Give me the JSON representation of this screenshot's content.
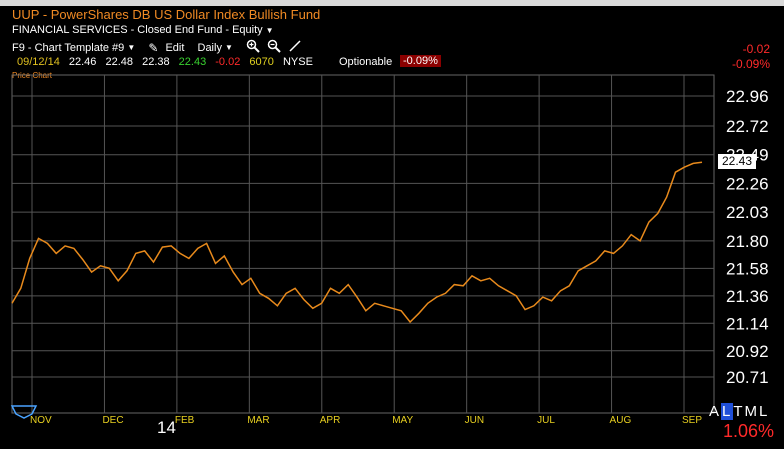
{
  "window": {
    "title": "UUP - PowerShares DB US Dollar Index Bullish Fund",
    "classification": "FINANCIAL SERVICES - Closed End Fund - Equity"
  },
  "toolbar": {
    "template": "F9 - Chart Template #9",
    "edit": "Edit",
    "period": "Daily"
  },
  "quote": {
    "date": "09/12/14",
    "open": "22.46",
    "high": "22.48",
    "low": "22.38",
    "last": "22.43",
    "change": "-0.02",
    "volume": "6070",
    "exchange": "NYSE",
    "optionable": "Optionable",
    "change_pct": "-0.09%"
  },
  "right_panel": {
    "change": "-0.02",
    "change_pct": "-0.09%",
    "range_labels": [
      "A",
      "L",
      "T",
      "M",
      "L"
    ],
    "range_pct": "1.06%"
  },
  "chart_data": {
    "type": "line",
    "panel_label": "Price Chart",
    "series": [
      {
        "color": "#e88a1c",
        "values": [
          21.3,
          21.42,
          21.66,
          21.82,
          21.78,
          21.7,
          21.76,
          21.74,
          21.65,
          21.55,
          21.6,
          21.58,
          21.48,
          21.56,
          21.7,
          21.72,
          21.63,
          21.75,
          21.76,
          21.7,
          21.66,
          21.74,
          21.78,
          21.62,
          21.68,
          21.55,
          21.45,
          21.5,
          21.38,
          21.34,
          21.28,
          21.38,
          21.42,
          21.33,
          21.26,
          21.3,
          21.42,
          21.38,
          21.45,
          21.35,
          21.24,
          21.3,
          21.28,
          21.26,
          21.24,
          21.15,
          21.22,
          21.3,
          21.35,
          21.38,
          21.45,
          21.44,
          21.52,
          21.48,
          21.5,
          21.44,
          21.4,
          21.36,
          21.25,
          21.28,
          21.35,
          21.32,
          21.4,
          21.44,
          21.56,
          21.6,
          21.64,
          21.72,
          21.7,
          21.76,
          21.85,
          21.8,
          21.95,
          22.02,
          22.15,
          22.35,
          22.39,
          22.42,
          22.43
        ]
      }
    ],
    "y_ticks": [
      "22.96",
      "22.72",
      "22.49",
      "22.26",
      "22.03",
      "21.80",
      "21.58",
      "21.36",
      "21.14",
      "20.92",
      "20.71"
    ],
    "ylim": [
      20.71,
      22.96
    ],
    "x_ticks": [
      "NOV",
      "DEC",
      "FEB",
      "MAR",
      "APR",
      "MAY",
      "JUN",
      "JUL",
      "AUG",
      "SEP"
    ],
    "year_label": "14",
    "last_price_label": "22.43",
    "grid": true
  },
  "colors": {
    "accent": "#e88a1c",
    "up": "#39d12f",
    "down": "#ff2a2a",
    "axis_text": "#e8d020"
  },
  "icons": [
    "dropdown-caret-icon",
    "edit-pencil-icon",
    "zoom-in-icon",
    "zoom-out-icon",
    "draw-line-icon",
    "navigator-icon"
  ]
}
